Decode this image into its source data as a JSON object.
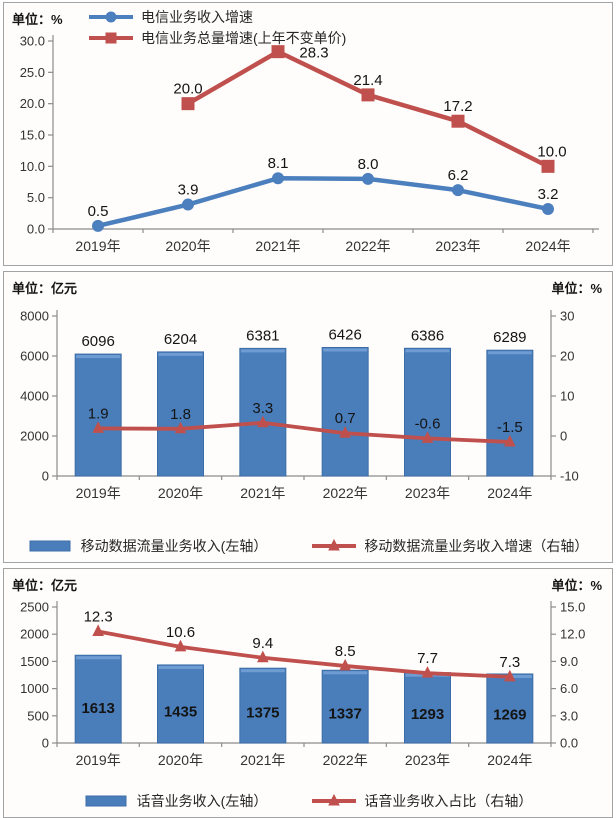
{
  "chart_data": [
    {
      "id": "telecom-growth",
      "type": "line",
      "unit_left": "单位：%",
      "categories": [
        "2019年",
        "2020年",
        "2021年",
        "2022年",
        "2023年",
        "2024年"
      ],
      "y_axis": {
        "min": 0,
        "max": 30,
        "step": 5,
        "decimals": 1
      },
      "legend_position": "top-left-overlay",
      "grid": "off",
      "series": [
        {
          "name": "电信业务收入增速",
          "color": "#4C7FBE",
          "marker": "circle",
          "values": [
            0.5,
            3.9,
            8.1,
            8.0,
            6.2,
            3.2
          ]
        },
        {
          "name": "电信业务总量增速(上年不变单价)",
          "color": "#C0504D",
          "marker": "square",
          "values": [
            null,
            20.0,
            28.3,
            21.4,
            17.2,
            10.0
          ],
          "label_dx": [
            0,
            0,
            36,
            0,
            0,
            4
          ],
          "label_dy": [
            0,
            0,
            16,
            0,
            0,
            0
          ]
        }
      ]
    },
    {
      "id": "mobile-data-revenue",
      "type": "bar-line",
      "unit_left": "单位：亿元",
      "unit_right": "单位：%",
      "categories": [
        "2019年",
        "2020年",
        "2021年",
        "2022年",
        "2023年",
        "2024年"
      ],
      "left_axis": {
        "min": 0,
        "max": 8000,
        "step": 2000,
        "decimals": 0
      },
      "right_axis": {
        "min": -10,
        "max": 30,
        "step": 10,
        "decimals": 0
      },
      "legend_position": "bottom-center",
      "grid": "off",
      "bars": {
        "name": "移动数据流量业务收入(左轴）",
        "color": "#4A7EBB",
        "edge_color": "#3C6DA8",
        "values": [
          6096,
          6204,
          6381,
          6426,
          6386,
          6289
        ],
        "label_position": "above"
      },
      "line": {
        "name": "移动数据流量业务收入增速（右轴）",
        "color": "#C0504D",
        "marker": "triangle",
        "values": [
          1.9,
          1.8,
          3.3,
          0.7,
          -0.6,
          -1.5
        ]
      }
    },
    {
      "id": "voice-revenue",
      "type": "bar-line",
      "unit_left": "单位：亿元",
      "unit_right": "单位：%",
      "categories": [
        "2019年",
        "2020年",
        "2021年",
        "2022年",
        "2023年",
        "2024年"
      ],
      "left_axis": {
        "min": 0,
        "max": 2500,
        "step": 500,
        "decimals": 0
      },
      "right_axis": {
        "min": 0,
        "max": 15,
        "step": 3,
        "decimals": 1
      },
      "legend_position": "bottom-center",
      "grid": "off",
      "bars": {
        "name": "话音业务收入(左轴）",
        "color": "#4A7EBB",
        "edge_color": "#3C6DA8",
        "values": [
          1613,
          1435,
          1375,
          1337,
          1293,
          1269
        ],
        "label_position": "inside"
      },
      "line": {
        "name": "话音业务收入占比（右轴）",
        "color": "#C0504D",
        "marker": "triangle",
        "values": [
          12.3,
          10.6,
          9.4,
          8.5,
          7.7,
          7.3
        ]
      }
    }
  ],
  "colors": {
    "bar_fill": "#4A7EBB",
    "bar_edge": "#3C6DA8",
    "line_red": "#C0504D",
    "line_blue": "#4C7FBE",
    "axis": "#8c8c8c",
    "tick_text": "#333333",
    "data_label": "#141414"
  }
}
